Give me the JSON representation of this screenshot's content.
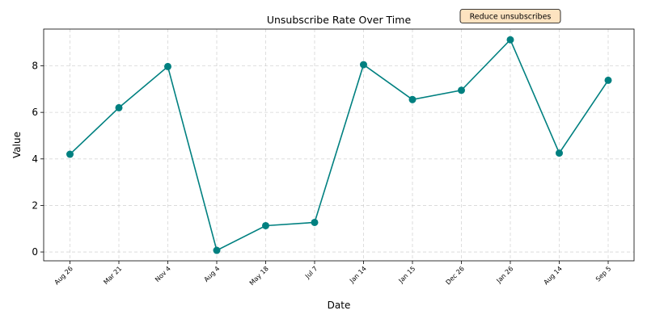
{
  "chart_data": {
    "type": "line",
    "title": "Unsubscribe Rate Over Time",
    "xlabel": "Date",
    "ylabel": "Value",
    "categories": [
      "Aug 26",
      "Mar 21",
      "Nov 4",
      "Aug 4",
      "May 18",
      "Jul 7",
      "Jan 14",
      "Jan 15",
      "Dec 26",
      "Jan 26",
      "Aug 14",
      "Sep 5"
    ],
    "values": [
      4.2,
      6.2,
      7.97,
      0.07,
      1.13,
      1.27,
      8.05,
      6.55,
      6.95,
      9.12,
      4.25,
      7.38
    ],
    "yticks": [
      0,
      2,
      4,
      6,
      8
    ],
    "ylim": [
      -0.38,
      9.58
    ],
    "grid": true,
    "line_color": "#008080",
    "marker": "circle",
    "annotation": {
      "text": "Reduce unsubscribes",
      "category": "Jan 26",
      "fill_color": "#fde3c0",
      "border_color": "#000000"
    }
  }
}
